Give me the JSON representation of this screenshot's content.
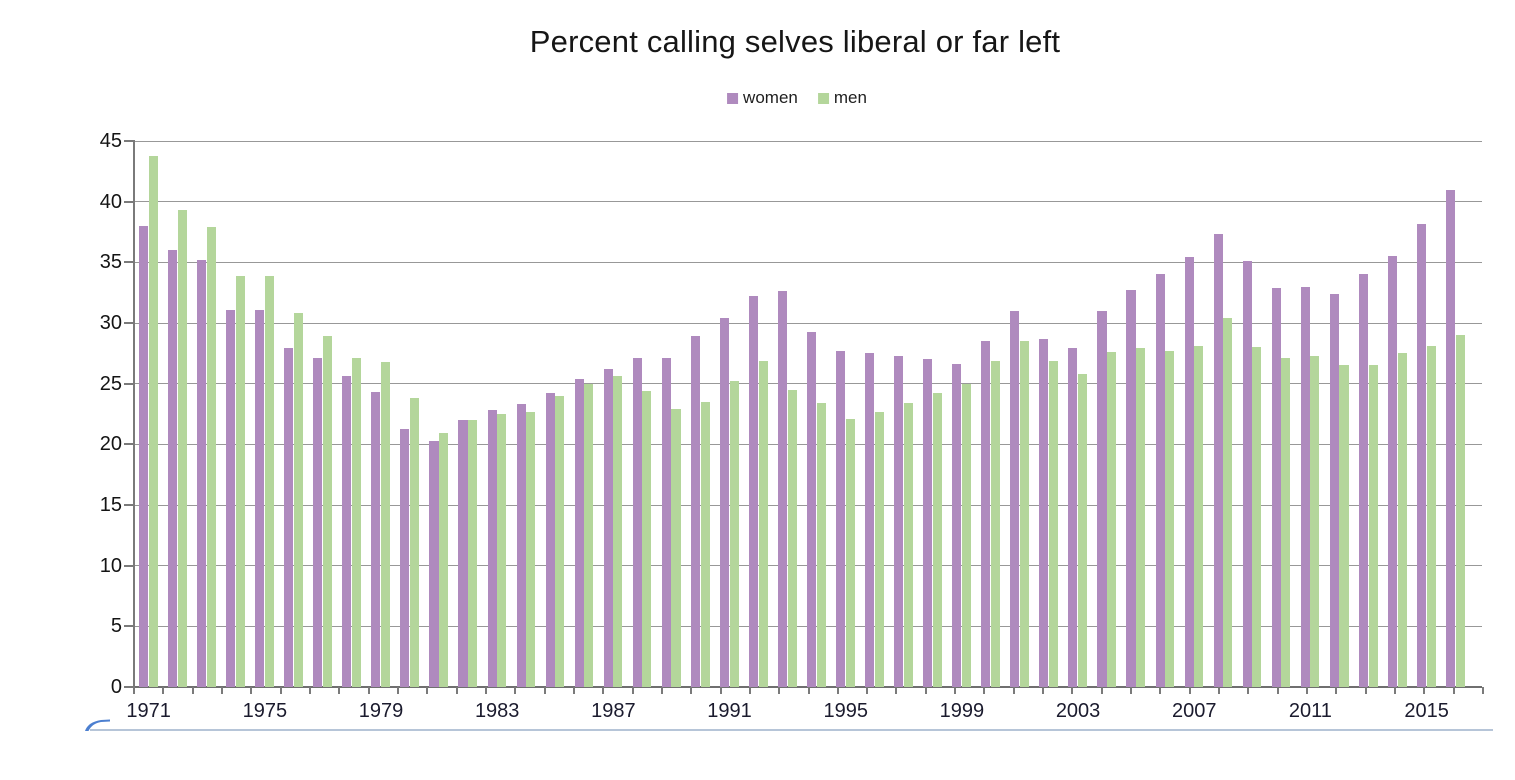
{
  "title": "Percent calling selves liberal or far left",
  "legend_position": "top",
  "colors": {
    "women": "#af8abe",
    "men": "#b4d69b",
    "gridline": "#989898",
    "axis": "#7a7a7a",
    "title_text": "#161616",
    "bottom_line": "#b6c5d8",
    "corner_accent": "#4c7fd0"
  },
  "chart_data": {
    "type": "bar",
    "title": "Percent calling selves liberal or far left",
    "xlabel": "",
    "ylabel": "",
    "ylim": [
      0,
      45
    ],
    "ytick_step": 5,
    "ytick_labels": [
      "0",
      "5",
      "10",
      "15",
      "20",
      "25",
      "30",
      "35",
      "40",
      "45"
    ],
    "xtick_labels": [
      "1971",
      "1975",
      "1979",
      "1983",
      "1987",
      "1991",
      "1995",
      "1999",
      "2003",
      "2007",
      "2011",
      "2015"
    ],
    "grid": true,
    "legend_position": "top",
    "categories": [
      "1971",
      "1972",
      "1973",
      "1974",
      "1975",
      "1976",
      "1977",
      "1978",
      "1979",
      "1980",
      "1981",
      "1982",
      "1983",
      "1984",
      "1985",
      "1986",
      "1987",
      "1988",
      "1989",
      "1990",
      "1991",
      "1992",
      "1993",
      "1994",
      "1995",
      "1996",
      "1997",
      "1998",
      "1999",
      "2000",
      "2001",
      "2002",
      "2003",
      "2004",
      "2005",
      "2006",
      "2007",
      "2008",
      "2009",
      "2010",
      "2011",
      "2012",
      "2013",
      "2014",
      "2015",
      "2016"
    ],
    "series": [
      {
        "name": "women",
        "color": "#af8abe",
        "values": [
          38.0,
          36.0,
          35.2,
          31.1,
          31.1,
          27.9,
          27.1,
          25.6,
          24.3,
          21.3,
          20.3,
          22.0,
          22.8,
          23.3,
          24.2,
          25.4,
          26.2,
          27.1,
          27.1,
          28.9,
          30.4,
          32.2,
          32.6,
          29.3,
          27.7,
          27.5,
          27.3,
          27.0,
          26.6,
          28.5,
          31.0,
          28.7,
          27.9,
          31.0,
          32.7,
          34.0,
          35.4,
          37.3,
          35.1,
          32.9,
          33.0,
          32.4,
          34.0,
          35.5,
          38.2,
          41.0
        ]
      },
      {
        "name": "men",
        "color": "#b4d69b",
        "values": [
          43.8,
          39.3,
          37.9,
          33.9,
          33.9,
          30.8,
          28.9,
          27.1,
          26.8,
          23.8,
          20.9,
          22.0,
          22.5,
          22.7,
          24.0,
          25.0,
          25.6,
          24.4,
          22.9,
          23.5,
          25.2,
          26.9,
          24.5,
          23.4,
          22.1,
          22.7,
          23.4,
          24.2,
          25.0,
          26.9,
          28.5,
          26.9,
          25.8,
          27.6,
          27.9,
          27.7,
          28.1,
          30.4,
          28.0,
          27.1,
          27.3,
          26.5,
          26.5,
          27.5,
          28.1,
          29.0
        ]
      }
    ]
  }
}
